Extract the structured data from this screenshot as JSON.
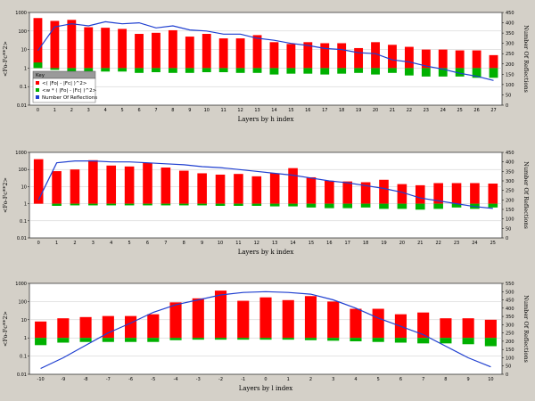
{
  "colors": {
    "background": "#d4d0c8",
    "plot_bg": "#ffffff",
    "bar_fo": "#ff0000",
    "bar_w": "#00b000",
    "line": "#1f3fd0",
    "grid": "#c8c8c8",
    "legend_header": "#9a9a9a"
  },
  "legend": {
    "title": "Key",
    "items": [
      {
        "label": "<( |Fo| - |Fc| )^2>",
        "color": "#ff0000"
      },
      {
        "label": "<w * ( |Fo| - |Fc| )^2>",
        "color": "#00b000"
      },
      {
        "label": "Number Of Reflections",
        "color": "#1f3fd0"
      }
    ]
  },
  "chart_data": [
    {
      "type": "bar",
      "xlabel": "Layers by h index",
      "ylabel_left": "<Fo-Fc**2>",
      "ylabel_right": "Number Of Reflections",
      "y_left_scale": "log",
      "y_left_ticks": [
        "1000",
        "100",
        "10",
        "1",
        "0.1",
        "0.01"
      ],
      "y_right_range": [
        0,
        450
      ],
      "y_right_ticks": [
        "450",
        "400",
        "350",
        "300",
        "250",
        "200",
        "150",
        "100",
        "50",
        "0"
      ],
      "grid": true,
      "legend_position": "bottom-left",
      "categories": [
        "0",
        "1",
        "2",
        "3",
        "4",
        "5",
        "6",
        "7",
        "8",
        "9",
        "10",
        "11",
        "12",
        "13",
        "14",
        "15",
        "16",
        "17",
        "18",
        "19",
        "20",
        "21",
        "22",
        "23",
        "24",
        "25",
        "26",
        "27"
      ],
      "series": [
        {
          "name": "<( |Fo| - |Fc| )^2>",
          "axis": "left",
          "values": [
            500,
            350,
            400,
            160,
            150,
            130,
            70,
            80,
            110,
            50,
            70,
            40,
            40,
            60,
            25,
            20,
            25,
            22,
            22,
            12,
            25,
            18,
            14,
            10,
            10,
            9,
            9,
            5
          ]
        },
        {
          "name": "<w * ( |Fo| - |Fc| )^2>",
          "axis": "left",
          "values": [
            2,
            0.8,
            0.65,
            0.65,
            0.65,
            0.65,
            0.55,
            0.6,
            0.55,
            0.55,
            0.6,
            0.6,
            0.55,
            0.55,
            0.45,
            0.5,
            0.5,
            0.45,
            0.5,
            0.55,
            0.45,
            0.55,
            0.4,
            0.35,
            0.35,
            0.35,
            0.3,
            0.3
          ]
        },
        {
          "name": "Number Of Reflections",
          "axis": "right",
          "values": [
            265,
            380,
            395,
            385,
            405,
            395,
            400,
            375,
            385,
            365,
            360,
            345,
            345,
            325,
            315,
            300,
            290,
            275,
            270,
            255,
            250,
            220,
            210,
            190,
            175,
            155,
            140,
            120
          ]
        }
      ]
    },
    {
      "type": "bar",
      "xlabel": "Layers by k index",
      "ylabel_left": "<Fo-Fc**2>",
      "ylabel_right": "Number Of Reflections",
      "y_left_scale": "log",
      "y_left_ticks": [
        "1000",
        "100",
        "10",
        "1",
        "0.1",
        "0.01"
      ],
      "y_right_range": [
        0,
        450
      ],
      "y_right_ticks": [
        "450",
        "400",
        "350",
        "300",
        "250",
        "200",
        "150",
        "100",
        "50",
        "0"
      ],
      "grid": true,
      "categories": [
        "0",
        "1",
        "2",
        "3",
        "4",
        "5",
        "6",
        "7",
        "8",
        "9",
        "10",
        "11",
        "12",
        "13",
        "14",
        "15",
        "16",
        "17",
        "18",
        "19",
        "20",
        "21",
        "22",
        "23",
        "24",
        "25"
      ],
      "series": [
        {
          "name": "<( |Fo| - |Fc| )^2>",
          "axis": "left",
          "values": [
            400,
            80,
            100,
            350,
            170,
            150,
            250,
            130,
            85,
            60,
            50,
            55,
            40,
            60,
            120,
            35,
            22,
            20,
            18,
            25,
            14,
            12,
            16,
            16,
            16,
            15
          ]
        },
        {
          "name": "<w * ( |Fo| - |Fc| )^2>",
          "axis": "left",
          "values": [
            1,
            0.75,
            0.8,
            0.8,
            0.8,
            0.8,
            0.8,
            0.8,
            0.8,
            0.8,
            0.75,
            0.75,
            0.75,
            0.7,
            0.7,
            0.6,
            0.55,
            0.55,
            0.6,
            0.5,
            0.5,
            0.45,
            0.5,
            0.6,
            0.5,
            0.6
          ]
        },
        {
          "name": "Number Of Reflections",
          "axis": "right",
          "values": [
            200,
            395,
            405,
            405,
            400,
            400,
            395,
            390,
            385,
            375,
            370,
            360,
            350,
            340,
            330,
            315,
            300,
            290,
            275,
            260,
            240,
            210,
            195,
            180,
            165,
            155
          ]
        }
      ]
    },
    {
      "type": "bar",
      "xlabel": "Layers by l index",
      "ylabel_left": "<Fo-Fc**2>",
      "ylabel_right": "Number Of Reflections",
      "y_left_scale": "log",
      "y_left_ticks": [
        "1000",
        "100",
        "10",
        "1",
        "0.1",
        "0.01"
      ],
      "y_right_range": [
        0,
        550
      ],
      "y_right_ticks": [
        "550",
        "500",
        "450",
        "400",
        "350",
        "300",
        "250",
        "200",
        "150",
        "100",
        "50",
        "0"
      ],
      "grid": true,
      "categories": [
        "-10",
        "-9",
        "-8",
        "-7",
        "-6",
        "-5",
        "-4",
        "-3",
        "-2",
        "-1",
        "0",
        "1",
        "2",
        "3",
        "4",
        "5",
        "6",
        "7",
        "8",
        "9",
        "10"
      ],
      "series": [
        {
          "name": "<( |Fo| - |Fc| )^2>",
          "axis": "left",
          "values": [
            8,
            12,
            14,
            16,
            16,
            20,
            90,
            150,
            400,
            110,
            170,
            120,
            200,
            100,
            40,
            40,
            20,
            25,
            12,
            12,
            10
          ]
        },
        {
          "name": "<w * ( |Fo| - |Fc| )^2>",
          "axis": "left",
          "values": [
            0.4,
            0.55,
            0.6,
            0.6,
            0.6,
            0.6,
            0.75,
            0.8,
            0.8,
            0.8,
            0.8,
            0.8,
            0.75,
            0.7,
            0.65,
            0.6,
            0.55,
            0.5,
            0.5,
            0.45,
            0.35
          ]
        },
        {
          "name": "Number Of Reflections",
          "axis": "right",
          "values": [
            35,
            100,
            175,
            250,
            310,
            375,
            420,
            450,
            480,
            495,
            500,
            495,
            485,
            450,
            400,
            340,
            290,
            240,
            170,
            100,
            45
          ]
        }
      ]
    }
  ]
}
